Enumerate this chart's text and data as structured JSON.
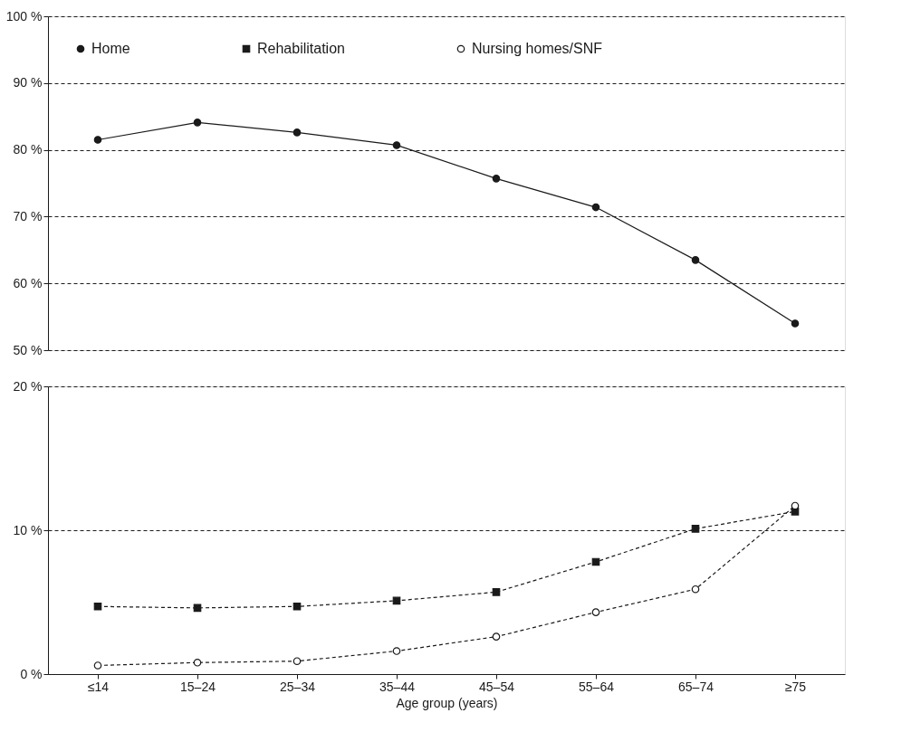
{
  "chart_data": [
    {
      "type": "line",
      "categories": [
        null,
        null,
        null,
        null,
        null,
        null,
        null,
        null
      ],
      "series": [
        {
          "name": "Home",
          "color": "#1a1a1a",
          "marker": "circle",
          "line_style": "solid",
          "values": [
            81.5,
            84.1,
            82.6,
            80.7,
            75.7,
            71.4,
            63.5,
            54.0
          ]
        }
      ],
      "ylim": [
        50,
        100
      ],
      "yticks": [
        {
          "value": 50,
          "label": "50 %"
        },
        {
          "value": 60,
          "label": "60 %"
        },
        {
          "value": 70,
          "label": "70 %"
        },
        {
          "value": 80,
          "label": "80 %"
        },
        {
          "value": 90,
          "label": "90 %"
        },
        {
          "value": 100,
          "label": "100 %"
        }
      ],
      "grid": "y",
      "legend": "top left",
      "tick_labels": "y"
    },
    {
      "type": "line",
      "categories": [
        "≤14",
        "15–24",
        "25–34",
        "35–44",
        "45–54",
        "55–64",
        "65–74",
        "≥75"
      ],
      "series": [
        {
          "name": "Rehabilitation",
          "color": "#1a1a1a",
          "marker": "square",
          "line_style": "dashed",
          "values": [
            4.7,
            4.6,
            4.7,
            5.1,
            5.7,
            7.8,
            10.1,
            11.3
          ]
        },
        {
          "name": "Nursing homes/SNF",
          "color": "#1a1a1a",
          "marker": "circle",
          "line_style": "dashed",
          "values": [
            0.6,
            0.8,
            0.9,
            1.6,
            2.6,
            4.3,
            5.9,
            11.7
          ]
        }
      ],
      "xlabel": "Age group (years)",
      "ylim": [
        0,
        20
      ],
      "yticks": [
        {
          "value": 0,
          "label": "0 %"
        },
        {
          "value": 10,
          "label": "10 %"
        },
        {
          "value": 20,
          "label": "20 %"
        }
      ],
      "grid": "y",
      "legend": "top left"
    }
  ]
}
